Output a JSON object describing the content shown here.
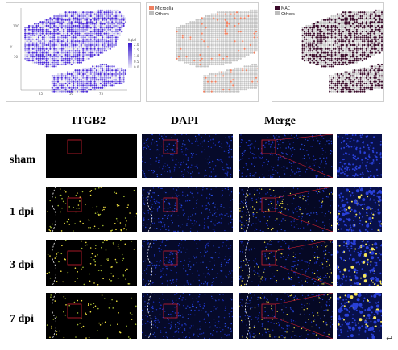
{
  "top_panels": {
    "panel1": {
      "legend_title": "Itgb2",
      "legend_ticks": [
        "2.0",
        "1.5",
        "1.0",
        "0.5",
        "0.0"
      ],
      "y_axis_label": "y",
      "y_ticks": [
        "100",
        "50"
      ],
      "x_ticks": [
        "25",
        "50",
        "75"
      ],
      "colors": {
        "high": "#4c2bd9",
        "low": "#d7d7ef",
        "none": "#e5e5e5"
      }
    },
    "panel2": {
      "legend": [
        {
          "label": "Microglia",
          "color": "#f08060"
        },
        {
          "label": "Others",
          "color": "#bdbdbd"
        }
      ]
    },
    "panel3": {
      "legend": [
        {
          "label": "MAC",
          "color": "#3a0b2a"
        },
        {
          "label": "Others",
          "color": "#bdbdbd"
        }
      ]
    }
  },
  "column_headers": [
    "ITGB2",
    "DAPI",
    "Merge"
  ],
  "row_labels": [
    "sham",
    "1 dpi",
    "3 dpi",
    "7 dpi"
  ],
  "return_symbol": "↵"
}
